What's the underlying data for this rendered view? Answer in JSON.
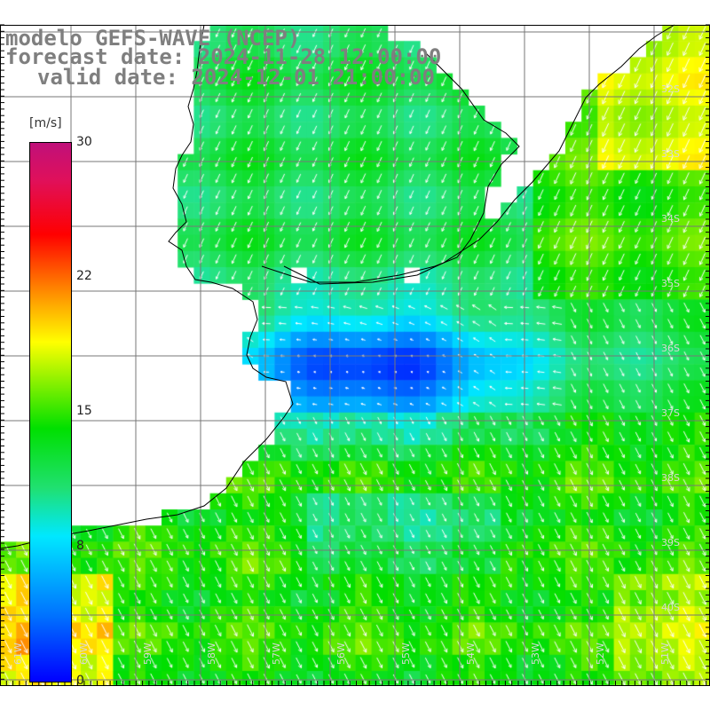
{
  "title": {
    "line1": "modelo GEFS-WAVE (NCEP)",
    "line2": "forecast date: 2024-11-28 12:00:00",
    "line3": "valid date: 2024-12-01 21:00:00"
  },
  "colorbar": {
    "unit": "[m/s]",
    "ticks": [
      "30",
      "22",
      "15",
      "8",
      "0"
    ],
    "range": [
      0,
      30
    ]
  },
  "latitude_labels": [
    "32S",
    "33S",
    "34S",
    "35S",
    "36S",
    "37S",
    "38S",
    "39S",
    "40S"
  ],
  "longitude_labels": [
    "61W",
    "60W",
    "59W",
    "58W",
    "57W",
    "56W",
    "55W",
    "54W",
    "53W",
    "52W",
    "51W"
  ],
  "colors": {
    "land": "#ffffff",
    "coast": "#000000",
    "grid": "#777777",
    "arrows": "#ffffff",
    "title": "#7f7f7f"
  }
}
